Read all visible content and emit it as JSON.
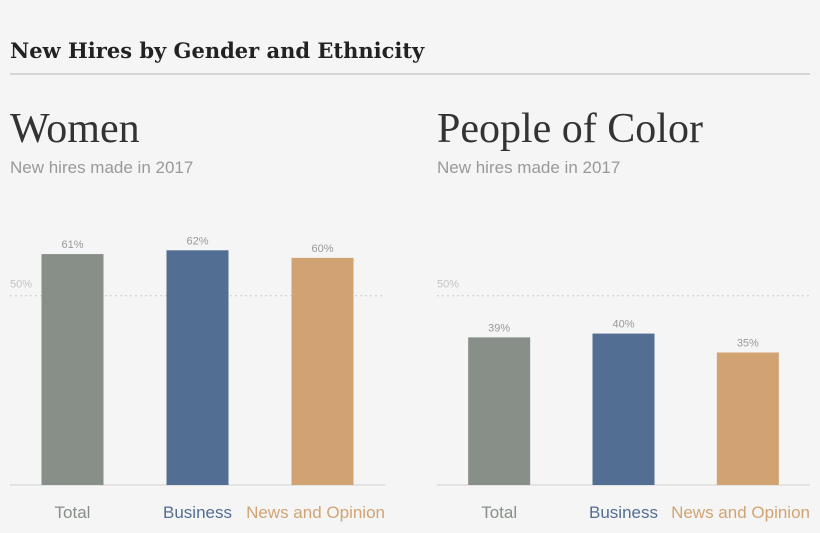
{
  "header": {
    "title": "New Hires by Gender and Ethnicity"
  },
  "chart_data": [
    {
      "type": "bar",
      "title": "Women",
      "subtitle": "New hires made in 2017",
      "categories": [
        "Total",
        "Business",
        "News and Opinion"
      ],
      "values": [
        61,
        62,
        60
      ],
      "value_labels": [
        "61%",
        "62%",
        "60%"
      ],
      "colors": [
        "#878f88",
        "#526e92",
        "#d2a372"
      ],
      "ylim": [
        0,
        70
      ],
      "yticks": [
        {
          "value": 50,
          "label": "50%"
        }
      ],
      "grid": true
    },
    {
      "type": "bar",
      "title": "People of Color",
      "subtitle": "New hires made in 2017",
      "categories": [
        "Total",
        "Business",
        "News and Opinion"
      ],
      "values": [
        39,
        40,
        35
      ],
      "value_labels": [
        "39%",
        "40%",
        "35%"
      ],
      "colors": [
        "#878f88",
        "#526e92",
        "#d2a372"
      ],
      "ylim": [
        0,
        70
      ],
      "yticks": [
        {
          "value": 50,
          "label": "50%"
        }
      ],
      "grid": true
    }
  ]
}
